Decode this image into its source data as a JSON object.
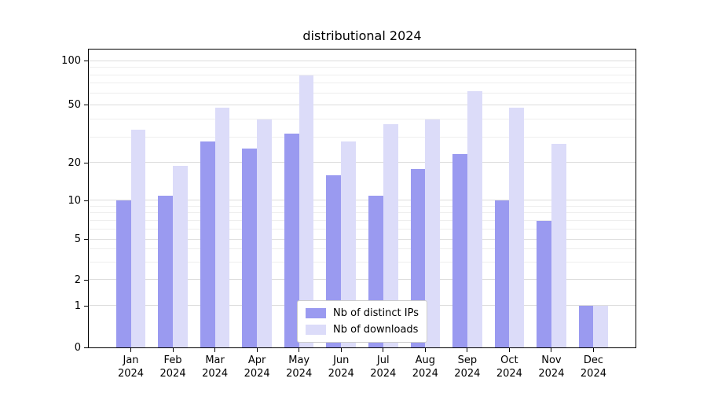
{
  "chart_data": {
    "type": "bar",
    "title": "distributional 2024",
    "year_label": "2024",
    "months": [
      "Jan",
      "Feb",
      "Mar",
      "Apr",
      "May",
      "Jun",
      "Jul",
      "Aug",
      "Sep",
      "Oct",
      "Nov",
      "Dec"
    ],
    "series": [
      {
        "key": "distinct-ips",
        "name": "Nb of distinct IPs",
        "color": "#9a9af0",
        "values": [
          10,
          11,
          28,
          25,
          32,
          16,
          11,
          18,
          23,
          10,
          7,
          1
        ]
      },
      {
        "key": "downloads",
        "name": "Nb of downloads",
        "color": "#dcdcf9",
        "values": [
          34,
          19,
          48,
          40,
          80,
          28,
          37,
          40,
          62,
          48,
          27,
          1
        ]
      }
    ],
    "yticks": [
      0,
      1,
      2,
      5,
      10,
      20,
      50,
      100
    ],
    "yticks_minor": [
      3,
      4,
      6,
      7,
      8,
      9,
      30,
      40,
      60,
      70,
      80,
      90
    ],
    "scale": "symlog",
    "grid": true,
    "legend_position": "lower center",
    "axis_color": "#000000",
    "grid_color": "#dddddd"
  }
}
